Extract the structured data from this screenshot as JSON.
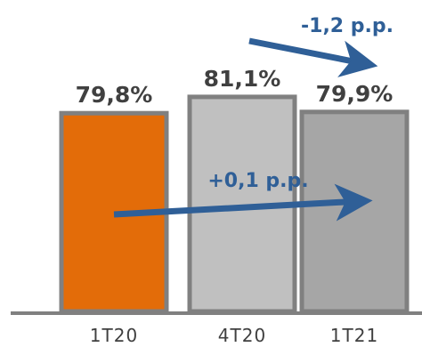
{
  "chart_data": {
    "type": "bar",
    "categories": [
      "1T20",
      "4T20",
      "1T21"
    ],
    "values": [
      79.8,
      81.1,
      79.9
    ],
    "value_labels": [
      "79,8%",
      "81,1%",
      "79,9%"
    ],
    "bar_colors": [
      "#e36c09",
      "#c0c0c0",
      "#a6a6a6"
    ],
    "bar_border_color": "#808080",
    "axis_color": "#808080",
    "annotations": [
      {
        "text": "-1,2 p.p.",
        "from": "4T20",
        "to": "1T21"
      },
      {
        "text": "+0,1 p.p.",
        "from": "1T20",
        "to": "1T21"
      }
    ],
    "annotation_color": "#2f5f97",
    "title": "",
    "xlabel": "",
    "ylabel": ""
  }
}
